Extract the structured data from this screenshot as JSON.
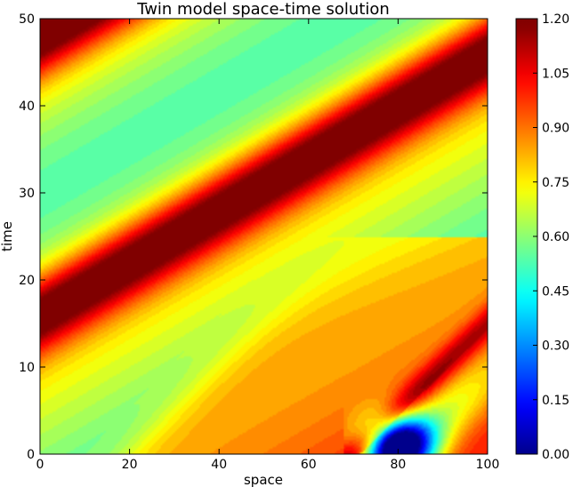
{
  "chart_data": {
    "type": "contourf",
    "title": "Twin model space-time solution",
    "xlabel": "space",
    "ylabel": "time",
    "xlim": [
      0,
      100
    ],
    "ylim": [
      0,
      50
    ],
    "xticks": [
      0,
      20,
      40,
      60,
      80,
      100
    ],
    "yticks": [
      0,
      10,
      20,
      30,
      40,
      50
    ],
    "colorbar": {
      "range": [
        0.0,
        1.2
      ],
      "ticks": [
        "0.00",
        "0.15",
        "0.30",
        "0.45",
        "0.60",
        "0.75",
        "0.90",
        "1.05",
        "1.20"
      ],
      "colormap": "jet",
      "levels": 40
    },
    "features": [
      {
        "kind": "ridge",
        "description": "main diagonal high band",
        "from": [
          0,
          16
        ],
        "to": [
          100,
          46
        ],
        "peak": 1.15
      },
      {
        "kind": "ridge",
        "description": "upper-left band",
        "from": [
          0,
          48
        ],
        "to": [
          12,
          51
        ],
        "peak": 1.12
      },
      {
        "kind": "ridge",
        "description": "lower-right front",
        "from": [
          70,
          0
        ],
        "to": [
          100,
          15
        ],
        "peak": 1.12
      },
      {
        "kind": "trough",
        "description": "low region behind front",
        "center": [
          80,
          1
        ],
        "min": 0.0
      },
      {
        "kind": "plateau",
        "description": "lower right elevated region",
        "center": [
          60,
          5
        ],
        "value": 0.95
      }
    ],
    "background_value": 0.62
  }
}
